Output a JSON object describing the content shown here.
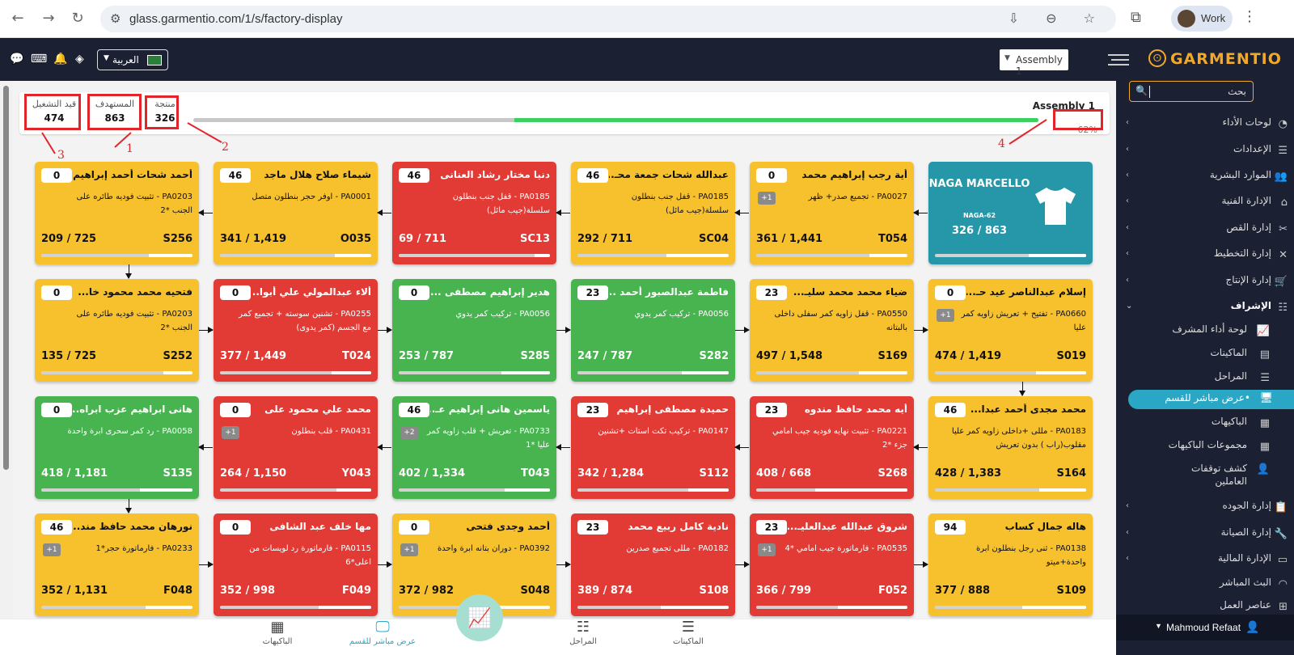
{
  "browser": {
    "url": "glass.garmentio.com/1/s/factory-display",
    "profile_name": "Work"
  },
  "header": {
    "language": "العربية",
    "line_select": "Assembly 1",
    "logo": "GARMENTIO"
  },
  "sidebar": {
    "search_placeholder": "بحث",
    "items": [
      {
        "label": "لوحات الأداء",
        "icon": "dashboard-icon"
      },
      {
        "label": "الإعدادات",
        "icon": "sliders-icon"
      },
      {
        "label": "الموارد البشرية",
        "icon": "users-icon"
      },
      {
        "label": "الإدارة الفنية",
        "icon": "hanger-icon"
      },
      {
        "label": "إدارة القص",
        "icon": "scissors-icon"
      },
      {
        "label": "إدارة التخطيط",
        "icon": "tools-icon"
      },
      {
        "label": "إدارة الإنتاج",
        "icon": "cart-icon"
      },
      {
        "label": "الإشراف",
        "icon": "list-icon"
      }
    ],
    "sub_items": [
      {
        "label": "لوحة أداء المشرف",
        "icon": "chart-icon"
      },
      {
        "label": "الماكينات",
        "icon": "server-icon"
      },
      {
        "label": "المراحل",
        "icon": "list-icon"
      },
      {
        "label": "عرض مباشر للقسم•",
        "icon": "monitor-icon"
      },
      {
        "label": "الباكيهات",
        "icon": "grid-icon"
      },
      {
        "label": "مجموعات الباكيهات",
        "icon": "grid4-icon"
      },
      {
        "label": "كشف توقفات العاملين",
        "icon": "user-x-icon"
      }
    ],
    "items2": [
      {
        "label": "إدارة الجوده",
        "icon": "clipboard-icon"
      },
      {
        "label": "إدارة الصيانة",
        "icon": "wrench-icon"
      },
      {
        "label": "الإدارة المالية",
        "icon": "money-icon"
      },
      {
        "label": "البث المباشر",
        "icon": "rss-icon"
      },
      {
        "label": "عناصر العمل",
        "icon": "sitemap-icon"
      }
    ],
    "user": "Mahmoud Refaat"
  },
  "summary": {
    "running_label": "قيد التشغيل",
    "running_value": "474",
    "target_label": "المستهدف",
    "target_value": "863",
    "produced_label": "منتجة",
    "produced_value": "326",
    "line_title": "Assembly 1",
    "percent": "62%",
    "progress": 0.62,
    "annotations": [
      "1",
      "2",
      "3",
      "4"
    ]
  },
  "style_card": {
    "title": "NAGA MARCELLO",
    "code": "NAGA-62",
    "count": "326 / 863",
    "progress": 0.38
  },
  "colors": {
    "yellow": "#f7c12e",
    "red": "#e23a34",
    "green": "#47b44f",
    "teal": "#2597a9",
    "accent": "#2aa7c4"
  },
  "cards": [
    {
      "color": "yellow",
      "badge": "0",
      "name": "أية رجب إبراهيم محمد",
      "desc": "PA0027 - تجميع صدر+ ظهر",
      "plus": "+1",
      "count": "361 / 1,441",
      "code": "T054",
      "progress": 0.25
    },
    {
      "color": "yellow",
      "badge": "46",
      "name": "عبدالله شحات جمعة محـ...",
      "desc": "PA0185 - قفل جنب بنطلون سلسلة(جيب مائل)",
      "plus": "",
      "count": "292 / 711",
      "code": "SC04",
      "progress": 0.41
    },
    {
      "color": "red",
      "badge": "46",
      "name": "دنيا مختار رشاد العنانى",
      "desc": "PA0185 - قفل جنب بنطلون سلسلة(جيب مائل)",
      "plus": "",
      "count": "69 / 711",
      "code": "SC13",
      "progress": 0.1
    },
    {
      "color": "yellow",
      "badge": "46",
      "name": "شيماء صلاح هلال ماجد",
      "desc": "PA0001 - اوفر حجر بنطلون متصل",
      "plus": "",
      "count": "341 / 1,419",
      "code": "O035",
      "progress": 0.24
    },
    {
      "color": "yellow",
      "badge": "0",
      "name": "أحمد شحات أحمد إبراهيم",
      "desc": "PA0203 - تثبيت فوديه طائره على الجنب *2",
      "plus": "",
      "count": "209 / 725",
      "code": "S256",
      "progress": 0.29
    },
    {
      "color": "yellow",
      "badge": "0",
      "name": "إسلام عبدالناصر عيد حـ...",
      "desc": "PA0660 - تفتيح + تعريش زاويه كمر عليا",
      "plus": "+1",
      "count": "474 / 1,419",
      "code": "S019",
      "progress": 0.33
    },
    {
      "color": "yellow",
      "badge": "23",
      "name": "ضياء محمد محمد سليـ...",
      "desc": "PA0550 - قفل زاويه كمر سفلى داخلى بالبتانه",
      "plus": "",
      "count": "497 / 1,548",
      "code": "S169",
      "progress": 0.32
    },
    {
      "color": "green",
      "badge": "23",
      "name": "فاطمة عبدالصبور أحمد ...",
      "desc": "PA0056 - تركيب كمر يدوي",
      "plus": "",
      "count": "247 / 787",
      "code": "S282",
      "progress": 0.31
    },
    {
      "color": "green",
      "badge": "0",
      "name": "هدير إبراهيم مصطفى ...",
      "desc": "PA0056 - تركيب كمر يدوي",
      "plus": "",
      "count": "253 / 787",
      "code": "S285",
      "progress": 0.32
    },
    {
      "color": "red",
      "badge": "0",
      "name": "ألاء عبدالمولي علي أبوا...",
      "desc": "PA0255 - تشنين سوسته + تجميع كمر مع الجسم (كمر يدوى)",
      "plus": "",
      "count": "377 / 1,449",
      "code": "T024",
      "progress": 0.26
    },
    {
      "color": "yellow",
      "badge": "0",
      "name": "فتحيه محمد محمود خا...",
      "desc": "PA0203 - تثبيت فوديه طائره على الجنب *2",
      "plus": "",
      "count": "135 / 725",
      "code": "S252",
      "progress": 0.19
    },
    {
      "color": "yellow",
      "badge": "46",
      "name": "محمد مجدى أحمد عبدا...",
      "desc": "PA0183 - مللى +داخلى زاويه كمر عليا مقلوب(راب ) بدون تعريش",
      "plus": "",
      "count": "428 / 1,383",
      "code": "S164",
      "progress": 0.31
    },
    {
      "color": "red",
      "badge": "23",
      "name": "أيه محمد حافظ مندوه",
      "desc": "PA0221 - تثبيت نهايه فوديه جيب امامي جزء *2",
      "plus": "",
      "count": "408 / 668",
      "code": "S268",
      "progress": 0.61
    },
    {
      "color": "red",
      "badge": "23",
      "name": "حميدة مصطفى إبراهيم",
      "desc": "PA0147 - تركيب تكت استات +تشنين",
      "plus": "",
      "count": "342 / 1,284",
      "code": "S112",
      "progress": 0.27
    },
    {
      "color": "green",
      "badge": "46",
      "name": "ياسمين هانى إبراهيم عـ...",
      "desc": "PA0733 - تعريش + قلب زاويه كمر عليا *1",
      "plus": "+2",
      "count": "402 / 1,334",
      "code": "T043",
      "progress": 0.3
    },
    {
      "color": "red",
      "badge": "0",
      "name": "محمد علي محمود على",
      "desc": "PA0431 - قلب بنطلون",
      "plus": "+1",
      "count": "264 / 1,150",
      "code": "Y043",
      "progress": 0.23
    },
    {
      "color": "green",
      "badge": "0",
      "name": "هانى ابراهيم عزب ابراه...",
      "desc": "PA0058 - رد كمر سحرى ابرة واحدة",
      "plus": "",
      "count": "418 / 1,181",
      "code": "S135",
      "progress": 0.35
    },
    {
      "color": "yellow",
      "badge": "94",
      "name": "هاله جمال كساب",
      "desc": "PA0138 - ثنى رجل بنطلون ابرة واحدة+ميتو",
      "plus": "",
      "count": "377 / 888",
      "code": "S109",
      "progress": 0.42
    },
    {
      "color": "red",
      "badge": "23",
      "name": "شروق عبدالله عبدالعليـ...",
      "desc": "PA0535 - فارماتورة جيب امامي *4",
      "plus": "+1",
      "count": "366 / 799",
      "code": "F052",
      "progress": 0.46
    },
    {
      "color": "red",
      "badge": "23",
      "name": "نادية كامل ربيع محمد",
      "desc": "PA0182 - مللى تجميع صدرين",
      "plus": "",
      "count": "389 / 874",
      "code": "S108",
      "progress": 0.45
    },
    {
      "color": "yellow",
      "badge": "0",
      "name": "أحمد وجدى فتحى",
      "desc": "PA0392 - دوران بتانه ابرة واحدة",
      "plus": "+1",
      "count": "372 / 982",
      "code": "S048",
      "progress": 0.38
    },
    {
      "color": "red",
      "badge": "0",
      "name": "مها خلف عبد الشافى",
      "desc": "PA0115 - فارماتورة رد لويسات من اعلى*6",
      "plus": "",
      "count": "352 / 998",
      "code": "F049",
      "progress": 0.35
    },
    {
      "color": "yellow",
      "badge": "46",
      "name": "نورهان محمد حافظ مند...",
      "desc": "PA0233 - فارماتورة حجر*1",
      "plus": "+1",
      "count": "352 / 1,131",
      "code": "F048",
      "progress": 0.31
    }
  ],
  "bottom_nav": [
    {
      "label": "الماكينات",
      "icon": "server-icon"
    },
    {
      "label": "المراحل",
      "icon": "list-icon"
    },
    {
      "label": "عرض مباشر للقسم",
      "icon": "monitor-icon"
    },
    {
      "label": "الباكيهات",
      "icon": "grid-icon"
    }
  ]
}
